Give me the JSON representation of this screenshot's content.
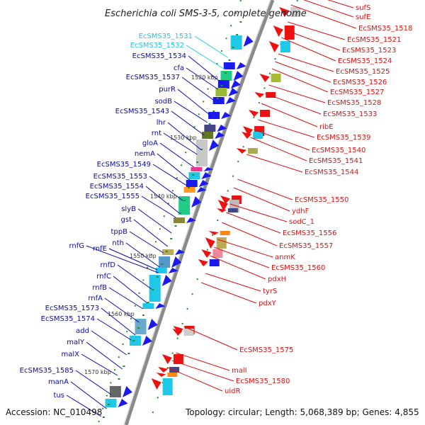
{
  "title": "Escherichia coli SMS-3-5, complete genome",
  "footer": {
    "accession": "Accession: NC_010498",
    "topology": "Topology: circular; Length: 5,068,389 bp; Genes: 4,855"
  },
  "colors": {
    "left_label": "#0a0aa8",
    "left_label_highlight": "#1ec8e6",
    "right_label": "#dd1111",
    "backbone": "#8a8a8a",
    "tick": "#2a8a2a"
  },
  "scale_labels": [
    "1520 kbp",
    "1530 kbp",
    "1540 kbp",
    "1550 kbp",
    "1560 kbp",
    "1570 kbp"
  ],
  "left_labels": [
    "EcSMS35_1531",
    "EcSMS35_1532",
    "EcSMS35_1534",
    "cfa",
    "EcSMS35_1537",
    "purR",
    "sodB",
    "EcSMS35_1543",
    "lhr",
    "rnt",
    "gloA",
    "nemA",
    "EcSMS35_1549",
    "EcSMS35_1553",
    "EcSMS35_1554",
    "EcSMS35_1555",
    "slyB",
    "gst",
    "tppB",
    "nth",
    "rnfG",
    "rnfE",
    "rnfD",
    "rnfC",
    "rnfB",
    "rnfA",
    "EcSMS35_1573",
    "EcSMS35_1574",
    "add",
    "malY",
    "malX",
    "EcSMS35_1585",
    "manA",
    "tus"
  ],
  "right_labels": [
    "sufS",
    "sufE",
    "EcSMS35_1518",
    "EcSMS35_1521",
    "EcSMS35_1523",
    "EcSMS35_1524",
    "EcSMS35_1525",
    "EcSMS35_1526",
    "EcSMS35_1527",
    "EcSMS35_1528",
    "EcSMS35_1533",
    "ribE",
    "EcSMS35_1539",
    "EcSMS35_1540",
    "EcSMS35_1541",
    "EcSMS35_1544",
    "EcSMS35_1550",
    "ydhF",
    "sodC_1",
    "EcSMS35_1556",
    "EcSMS35_1557",
    "anmK",
    "EcSMS35_1560",
    "pdxH",
    "tyrS",
    "pdxY",
    "EcSMS35_1575",
    "malI",
    "EcSMS35_1580",
    "uidR"
  ]
}
